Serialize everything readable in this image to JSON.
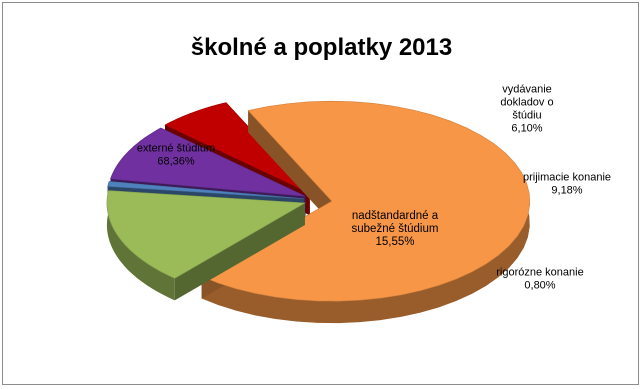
{
  "chart_data": {
    "type": "pie",
    "title": "školné a poplatky 2013",
    "slices": [
      {
        "name": "externé štúdium",
        "label_lines": [
          "externé štúdium",
          "68,36%"
        ],
        "value": 68.36,
        "color": "#f79646"
      },
      {
        "name": "nadštandardné a subežné štúdium",
        "label_lines": [
          "nadštandardné a",
          "subežné štúdium",
          "15,55%"
        ],
        "value": 15.55,
        "color": "#9bbb59"
      },
      {
        "name": "rigorózne konanie",
        "label_lines": [
          "rigorózne konanie",
          "0,80%"
        ],
        "value": 0.8,
        "color": "#4f81bd"
      },
      {
        "name": "prijimacie konanie",
        "label_lines": [
          "prijimacie konanie",
          "9,18%"
        ],
        "value": 9.18,
        "color": "#7030a0"
      },
      {
        "name": "vydávanie dokladov o štúdiu",
        "label_lines": [
          "vydávanie",
          "dokladov o",
          "štúdiu",
          "6,10%"
        ],
        "value": 6.1,
        "color": "#c00000"
      }
    ],
    "legend": "none"
  }
}
